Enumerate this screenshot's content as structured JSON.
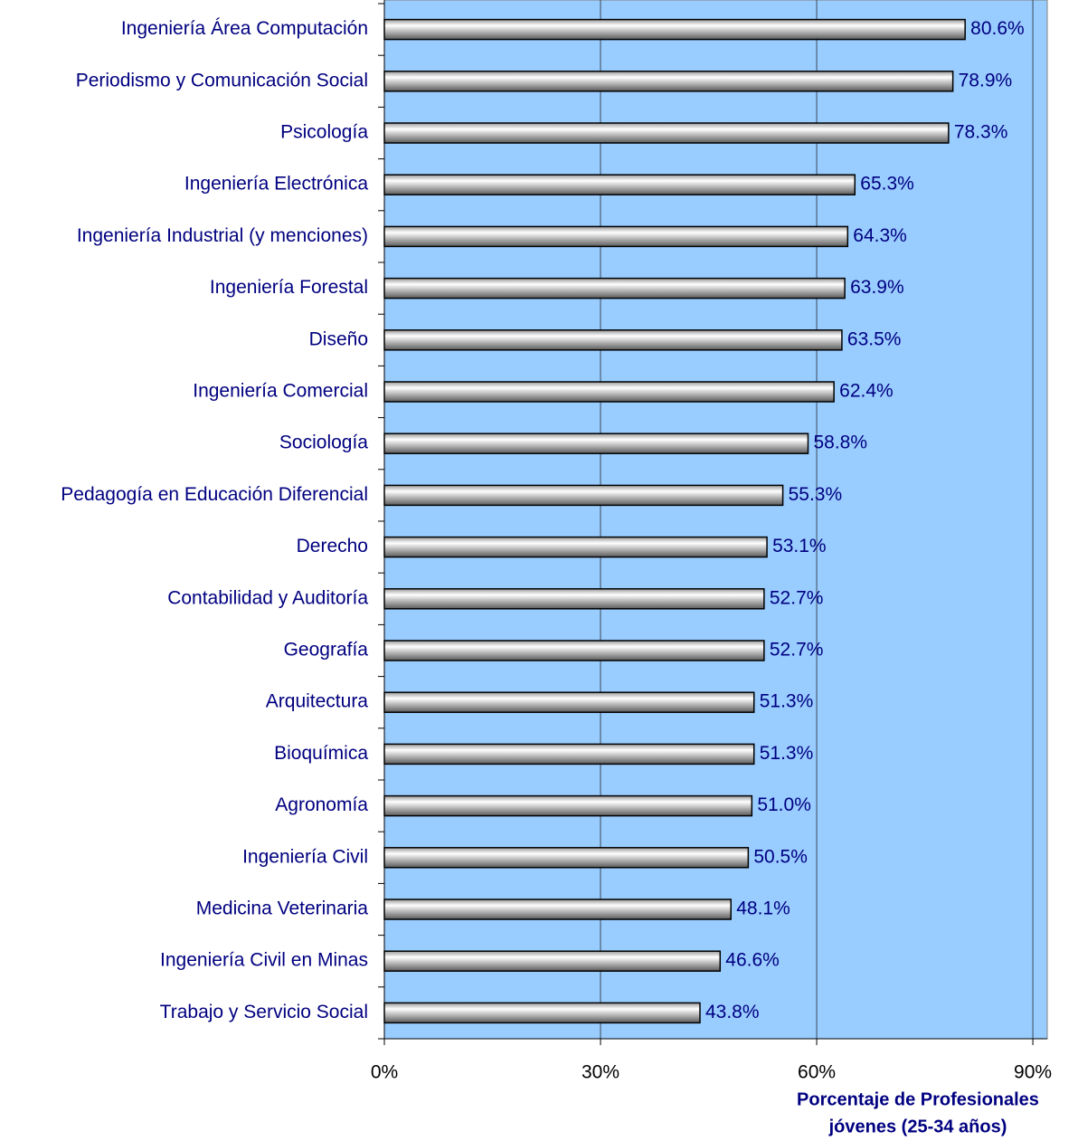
{
  "chart_data": {
    "type": "hbar",
    "categories": [
      "Ingeniería Área Computación",
      "Periodismo y Comunicación Social",
      "Psicología",
      "Ingeniería Electrónica",
      "Ingeniería Industrial (y menciones)",
      "Ingeniería Forestal",
      "Diseño",
      "Ingeniería Comercial",
      "Sociología",
      "Pedagogía en Educación Diferencial",
      "Derecho",
      "Contabilidad y Auditoría",
      "Geografía",
      "Arquitectura",
      "Bioquímica",
      "Agronomía",
      "Ingeniería Civil",
      "Medicina Veterinaria",
      "Ingeniería Civil en Minas",
      "Trabajo y Servicio Social"
    ],
    "values": [
      80.6,
      78.9,
      78.3,
      65.3,
      64.3,
      63.9,
      63.5,
      62.4,
      58.8,
      55.3,
      53.1,
      52.7,
      52.7,
      51.3,
      51.3,
      51.0,
      50.5,
      48.1,
      46.6,
      43.8
    ],
    "value_labels": [
      "80.6%",
      "78.9%",
      "78.3%",
      "65.3%",
      "64.3%",
      "63.9%",
      "63.5%",
      "62.4%",
      "58.8%",
      "55.3%",
      "53.1%",
      "52.7%",
      "52.7%",
      "51.3%",
      "51.3%",
      "51.0%",
      "50.5%",
      "48.1%",
      "46.6%",
      "43.8%"
    ],
    "xlim": [
      0,
      92
    ],
    "xticks": [
      {
        "value": 0,
        "label": "0%"
      },
      {
        "value": 30,
        "label": "30%"
      },
      {
        "value": 60,
        "label": "60%"
      },
      {
        "value": 90,
        "label": "90%"
      }
    ],
    "xlabel": [
      "Porcentaje de Profesionales",
      "jóvenes (25-34 años)"
    ],
    "grid": true,
    "background": "#99ccff"
  }
}
